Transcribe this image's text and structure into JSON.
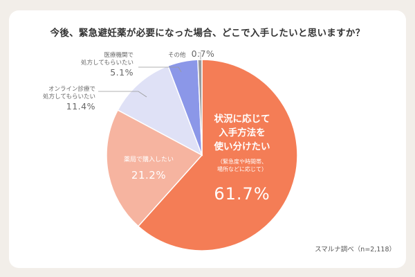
{
  "title": "今後、緊急避妊薬が必要になった場合、どこで入手したいと思いますか？",
  "source": "スマルナ調べ（n=2,118）",
  "chart_data": {
    "type": "pie",
    "title": "今後、緊急避妊薬が必要になった場合、どこで入手したいと思いますか？",
    "slices": [
      {
        "label": "状況に応じて入手方法を使い分けたい",
        "label_lines": [
          "状況に応じて",
          "入手方法を",
          "使い分けたい"
        ],
        "note": [
          "（緊急度や時間帯、",
          "場所などに応じて）"
        ],
        "value": 61.7,
        "display": "61.7%",
        "color": "#f47d56"
      },
      {
        "label": "薬局で購入したい",
        "label_lines": [
          "薬局で購入したい"
        ],
        "value": 21.2,
        "display": "21.2%",
        "color": "#f6b4a0"
      },
      {
        "label": "オンライン診療で処方してもらいたい",
        "label_lines": [
          "オンライン診療で",
          "処方してもらいたい"
        ],
        "value": 11.4,
        "display": "11.4%",
        "color": "#dfe1f6"
      },
      {
        "label": "医療機関で処方してもらいたい",
        "label_lines": [
          "医療機関で",
          "処方してもらいたい"
        ],
        "value": 5.1,
        "display": "5.1%",
        "color": "#8b97e8"
      },
      {
        "label": "その他",
        "label_lines": [
          "その他"
        ],
        "value": 0.7,
        "display": "0.7%",
        "color": "#999999"
      }
    ]
  }
}
